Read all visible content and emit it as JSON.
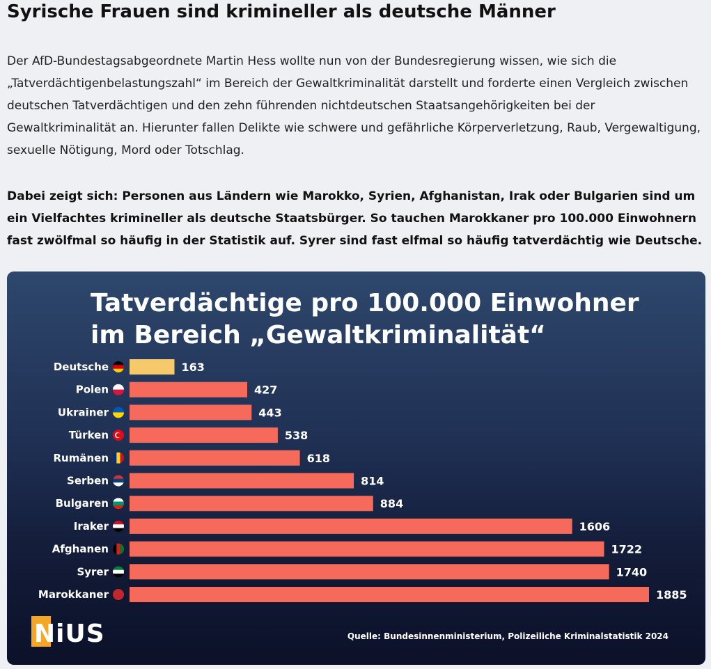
{
  "article": {
    "headline": "Syrische Frauen sind krimineller als deutsche Männer",
    "paragraph1": "Der AfD-Bundestagsabgeordnete Martin Hess wollte nun von der Bundesregierung wissen, wie sich die „Tatverdächtigenbelastungszahl“ im Bereich der Gewaltkriminalität darstellt und forderte einen Vergleich zwischen deutschen Tatverdächtigen und den zehn führenden nichtdeutschen Staatsangehörigkeiten bei der Gewaltkriminalität an. Hierunter fallen Delikte wie schwere und gefährliche Körperverletzung, Raub, Vergewaltigung, sexuelle Nötigung, Mord oder Totschlag.",
    "paragraph2": "Dabei zeigt sich: Personen aus Ländern wie Marokko, Syrien, Afghanistan, Irak oder Bulgarien sind um ein Vielfachtes krimineller als deutsche Staatsbürger. So tauchen Marokkaner pro 100.000 Einwohnern fast zwölfmal so häufig in der Statistik auf. Syrer sind fast elfmal so häufig tatverdächtig wie Deutsche."
  },
  "chart_data": {
    "type": "bar",
    "orientation": "horizontal",
    "title_line1": "Tatverdächtige pro 100.000 Einwohner",
    "title_line2": "im Bereich „Gewaltkriminalität“",
    "categories": [
      "Deutsche",
      "Polen",
      "Ukrainer",
      "Türken",
      "Rumänen",
      "Serben",
      "Bulgaren",
      "Iraker",
      "Afghanen",
      "Syrer",
      "Marokkaner"
    ],
    "values": [
      163,
      427,
      443,
      538,
      618,
      814,
      884,
      1606,
      1722,
      1740,
      1885
    ],
    "flags": [
      "germany-flag-icon",
      "poland-flag-icon",
      "ukraine-flag-icon",
      "turkey-flag-icon",
      "romania-flag-icon",
      "serbia-flag-icon",
      "bulgaria-flag-icon",
      "iraq-flag-icon",
      "afghanistan-flag-icon",
      "syria-flag-icon",
      "morocco-flag-icon"
    ],
    "bar_colors": {
      "highlight": "#f6c96a",
      "default": "#f66a5b"
    },
    "xlim": [
      0,
      1885
    ],
    "grid": false,
    "legend": "none",
    "source": "Quelle: Bundesinnenministerium, Polizeiliche Kriminalstatistik 2024",
    "logo_text": "NiUS"
  },
  "colors": {
    "logo_orange": "#f5a623",
    "label_text": "#ffffff"
  }
}
